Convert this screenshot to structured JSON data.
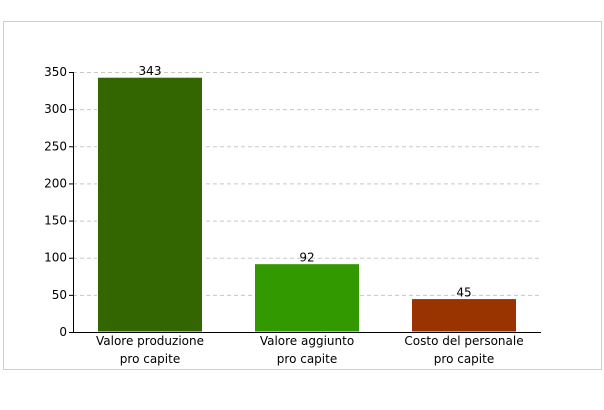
{
  "chart_data": {
    "type": "bar",
    "categories": [
      [
        "Valore produzione",
        "pro capite"
      ],
      [
        "Valore aggiunto",
        "pro capite"
      ],
      [
        "Costo del personale",
        "pro capite"
      ]
    ],
    "values": [
      343,
      92,
      45
    ],
    "data_labels": [
      "343",
      "92",
      "45"
    ],
    "colors": [
      "#336600",
      "#339900",
      "#993300"
    ],
    "ylim": [
      0,
      350
    ],
    "yticks": [
      0,
      50,
      100,
      150,
      200,
      250,
      300,
      350
    ],
    "grid": true,
    "legend": "none"
  }
}
